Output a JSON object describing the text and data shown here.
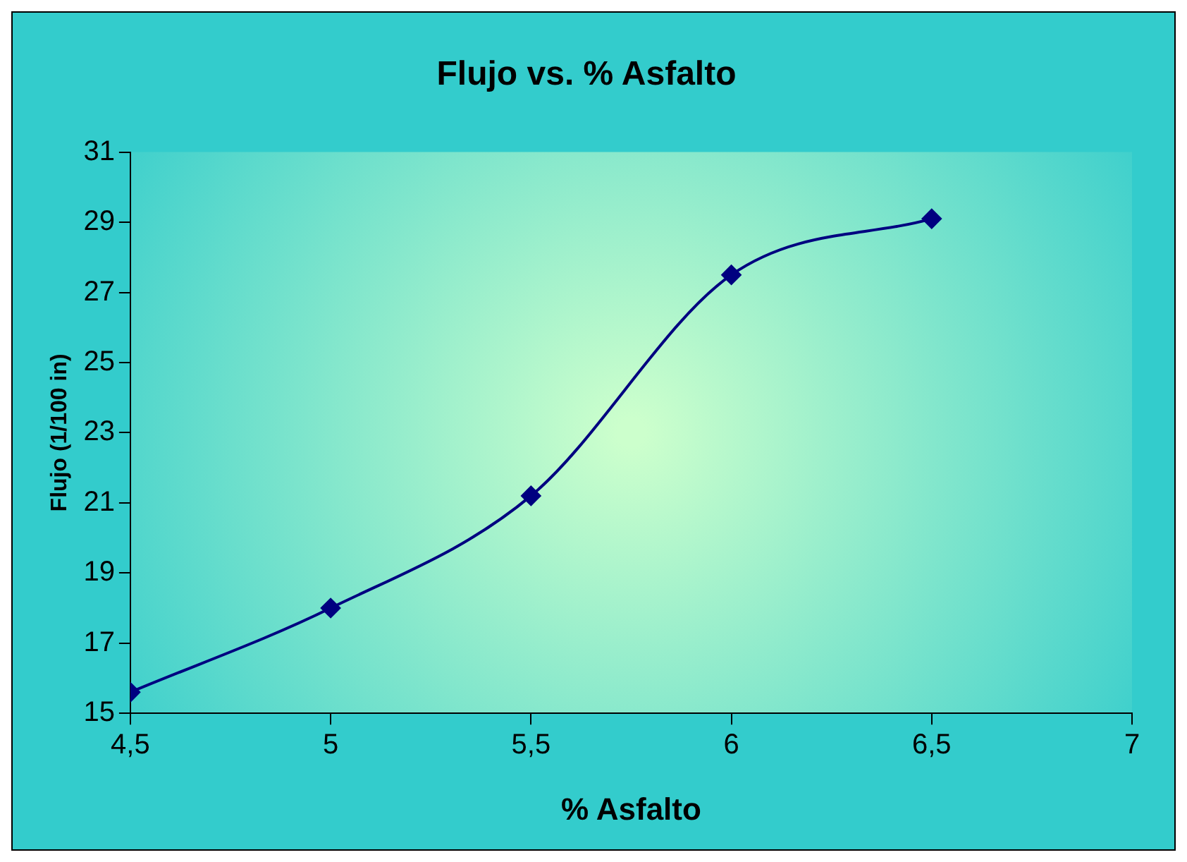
{
  "chart_data": {
    "type": "line",
    "title": "Flujo vs. % Asfalto",
    "xlabel": "% Asfalto",
    "ylabel": "Flujo (1/100 in)",
    "x": [
      4.5,
      5,
      5.5,
      6,
      6.5
    ],
    "series": [
      {
        "color": "#000080",
        "values": [
          15.6,
          18.0,
          21.2,
          27.5,
          29.1
        ]
      }
    ],
    "xlim": [
      4.5,
      7
    ],
    "xticks": [
      {
        "value": 4.5,
        "label": "4,5"
      },
      5,
      {
        "value": 5.5,
        "label": "5,5"
      },
      6,
      {
        "value": 6.5,
        "label": "6,5"
      },
      7
    ],
    "ylim": [
      15,
      31
    ],
    "yticks": [
      15,
      17,
      19,
      21,
      23,
      25,
      27,
      29,
      31
    ],
    "grid": false,
    "legend": false,
    "marker": "diamond",
    "line_style": "solid"
  }
}
